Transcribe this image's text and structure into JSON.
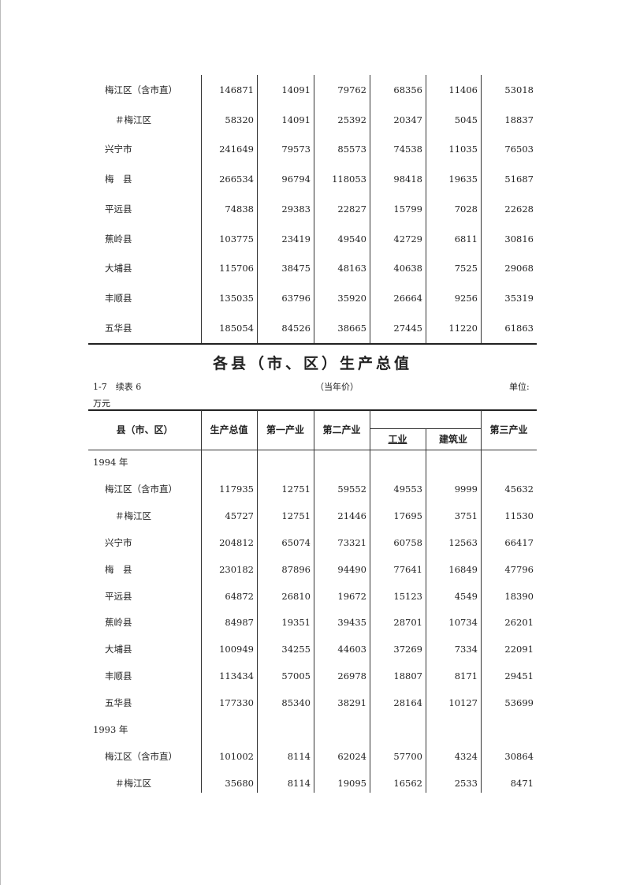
{
  "top_table": {
    "rows": [
      {
        "label": "梅江区（含市直）",
        "indent": 0,
        "values": [
          "146871",
          "14091",
          "79762",
          "68356",
          "11406",
          "53018"
        ]
      },
      {
        "label": "＃梅江区",
        "indent": 1,
        "values": [
          "58320",
          "14091",
          "25392",
          "20347",
          "5045",
          "18837"
        ]
      },
      {
        "label": "兴宁市",
        "indent": 0,
        "values": [
          "241649",
          "79573",
          "85573",
          "74538",
          "11035",
          "76503"
        ]
      },
      {
        "label": "梅　县",
        "indent": 0,
        "values": [
          "266534",
          "96794",
          "118053",
          "98418",
          "19635",
          "51687"
        ]
      },
      {
        "label": "平远县",
        "indent": 0,
        "values": [
          "74838",
          "29383",
          "22827",
          "15799",
          "7028",
          "22628"
        ]
      },
      {
        "label": "蕉岭县",
        "indent": 0,
        "values": [
          "103775",
          "23419",
          "49540",
          "42729",
          "6811",
          "30816"
        ]
      },
      {
        "label": "大埔县",
        "indent": 0,
        "values": [
          "115706",
          "38475",
          "48163",
          "40638",
          "7525",
          "29068"
        ]
      },
      {
        "label": "丰顺县",
        "indent": 0,
        "values": [
          "135035",
          "63796",
          "35920",
          "26664",
          "9256",
          "35319"
        ]
      },
      {
        "label": "五华县",
        "indent": 0,
        "values": [
          "185054",
          "84526",
          "38665",
          "27445",
          "11220",
          "61863"
        ]
      }
    ]
  },
  "title": "各县（市、区）生产总值",
  "meta": {
    "table_no": "1-7　续表 6",
    "price": "（当年价）",
    "unit_label": "单位:",
    "unit": "万元"
  },
  "headers": {
    "region": "县（市、区）",
    "gdp": "生产总值",
    "primary": "第一产业",
    "secondary": "第二产业",
    "industry": "工业",
    "construction": "建筑业",
    "tertiary": "第三产业"
  },
  "bottom_table": {
    "rows": [
      {
        "label": "1994 年",
        "indent": -1,
        "values": []
      },
      {
        "label": "梅江区（含市直）",
        "indent": 0,
        "values": [
          "117935",
          "12751",
          "59552",
          "49553",
          "9999",
          "45632"
        ]
      },
      {
        "label": "＃梅江区",
        "indent": 1,
        "values": [
          "45727",
          "12751",
          "21446",
          "17695",
          "3751",
          "11530"
        ]
      },
      {
        "label": "兴宁市",
        "indent": 0,
        "values": [
          "204812",
          "65074",
          "73321",
          "60758",
          "12563",
          "66417"
        ]
      },
      {
        "label": "梅　县",
        "indent": 0,
        "values": [
          "230182",
          "87896",
          "94490",
          "77641",
          "16849",
          "47796"
        ]
      },
      {
        "label": "平远县",
        "indent": 0,
        "values": [
          "64872",
          "26810",
          "19672",
          "15123",
          "4549",
          "18390"
        ]
      },
      {
        "label": "蕉岭县",
        "indent": 0,
        "values": [
          "84987",
          "19351",
          "39435",
          "28701",
          "10734",
          "26201"
        ]
      },
      {
        "label": "大埔县",
        "indent": 0,
        "values": [
          "100949",
          "34255",
          "44603",
          "37269",
          "7334",
          "22091"
        ]
      },
      {
        "label": "丰顺县",
        "indent": 0,
        "values": [
          "113434",
          "57005",
          "26978",
          "18807",
          "8171",
          "29451"
        ]
      },
      {
        "label": "五华县",
        "indent": 0,
        "values": [
          "177330",
          "85340",
          "38291",
          "28164",
          "10127",
          "53699"
        ]
      },
      {
        "label": "1993 年",
        "indent": -1,
        "values": []
      },
      {
        "label": "梅江区（含市直）",
        "indent": 0,
        "values": [
          "101002",
          "8114",
          "62024",
          "57700",
          "4324",
          "30864"
        ]
      },
      {
        "label": "＃梅江区",
        "indent": 1,
        "values": [
          "35680",
          "8114",
          "19095",
          "16562",
          "2533",
          "8471"
        ]
      }
    ]
  }
}
